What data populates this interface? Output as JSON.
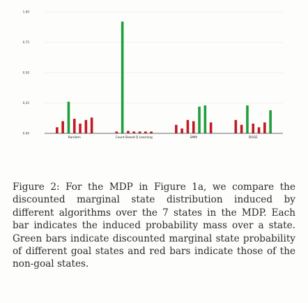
{
  "chart_data": {
    "type": "bar",
    "categories": [
      "Random",
      "Count Based Q Learning",
      "SMM",
      "DOGE"
    ],
    "ylim": [
      0,
      1
    ],
    "yticks": [
      "0.00",
      "0.25",
      "0.50",
      "0.75",
      "1.00"
    ],
    "grid": true,
    "legend": "none",
    "colors": {
      "goal": "#1f9e3c",
      "non_goal": "#c21a24",
      "grid": "#e6e6e6",
      "axis": "#333333"
    },
    "groups": [
      {
        "category": "Random",
        "states": [
          {
            "goal": false,
            "value": 0.05
          },
          {
            "goal": false,
            "value": 0.1
          },
          {
            "goal": true,
            "value": 0.26
          },
          {
            "goal": false,
            "value": 0.12
          },
          {
            "goal": false,
            "value": 0.08
          },
          {
            "goal": false,
            "value": 0.11
          },
          {
            "goal": false,
            "value": 0.13
          }
        ]
      },
      {
        "category": "Count Based Q Learning",
        "states": [
          {
            "goal": false,
            "value": 0.015
          },
          {
            "goal": true,
            "value": 0.92
          },
          {
            "goal": false,
            "value": 0.02
          },
          {
            "goal": false,
            "value": 0.015
          },
          {
            "goal": false,
            "value": 0.015
          },
          {
            "goal": false,
            "value": 0.015
          },
          {
            "goal": false,
            "value": 0.015
          }
        ]
      },
      {
        "category": "SMM",
        "states": [
          {
            "goal": false,
            "value": 0.07
          },
          {
            "goal": false,
            "value": 0.04
          },
          {
            "goal": false,
            "value": 0.11
          },
          {
            "goal": false,
            "value": 0.1
          },
          {
            "goal": true,
            "value": 0.22
          },
          {
            "goal": true,
            "value": 0.23
          },
          {
            "goal": false,
            "value": 0.09
          }
        ]
      },
      {
        "category": "DOGE",
        "states": [
          {
            "goal": false,
            "value": 0.11
          },
          {
            "goal": false,
            "value": 0.07
          },
          {
            "goal": true,
            "value": 0.23
          },
          {
            "goal": false,
            "value": 0.08
          },
          {
            "goal": false,
            "value": 0.05
          },
          {
            "goal": false,
            "value": 0.09
          },
          {
            "goal": true,
            "value": 0.19
          }
        ]
      }
    ]
  },
  "caption": "Figure 2: For the MDP in Figure 1a, we compare the discounted marginal state distribution induced by different algorithms over the 7 states in the MDP. Each bar indicates the induced probability mass over a state. Green bars indicate discounted marginal state probability of different goal states and red bars indicate those of the non-goal states."
}
